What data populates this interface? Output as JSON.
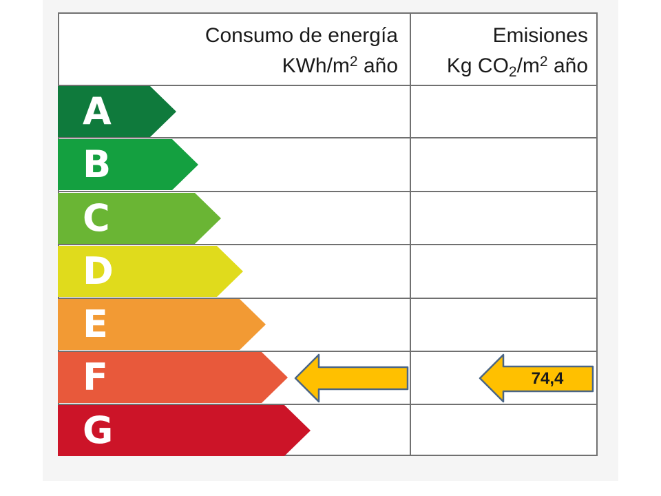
{
  "header": {
    "consumption_title": "Consumo de energía",
    "consumption_unit_prefix": "KWh/m",
    "consumption_unit_exp": "2",
    "consumption_unit_suffix": " año",
    "emissions_title": "Emisiones",
    "emissions_unit_prefix": "Kg CO",
    "emissions_unit_sub": "2",
    "emissions_unit_mid": "/m",
    "emissions_unit_exp": "2",
    "emissions_unit_suffix": " año"
  },
  "bands": [
    {
      "letter": "A",
      "color": "#0f7a3c"
    },
    {
      "letter": "B",
      "color": "#14a040"
    },
    {
      "letter": "C",
      "color": "#6ab534"
    },
    {
      "letter": "D",
      "color": "#e0db1c"
    },
    {
      "letter": "E",
      "color": "#f29a34"
    },
    {
      "letter": "F",
      "color": "#e8593b"
    },
    {
      "letter": "G",
      "color": "#cc1428"
    }
  ],
  "rating": {
    "consumption_class": "F",
    "emissions_class": "F",
    "emissions_value": "74,4",
    "indicator_color": "#ffc000",
    "indicator_border": "#4a6585"
  }
}
